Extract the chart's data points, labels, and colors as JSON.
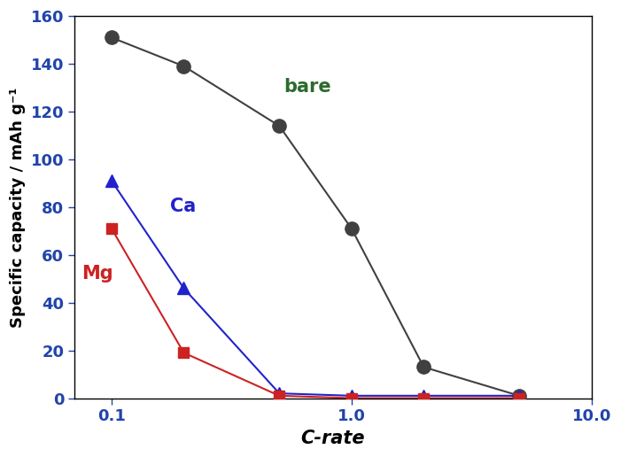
{
  "bare_x": [
    0.1,
    0.2,
    0.5,
    1.0,
    2.0,
    5.0
  ],
  "bare_y": [
    151,
    139,
    114,
    71,
    13,
    1
  ],
  "ca_x": [
    0.1,
    0.2,
    0.5,
    1.0,
    2.0,
    5.0
  ],
  "ca_y": [
    91,
    46,
    2,
    1,
    1,
    1
  ],
  "mg_x": [
    0.1,
    0.2,
    0.5,
    1.0,
    2.0,
    5.0
  ],
  "mg_y": [
    71,
    19,
    1,
    0,
    0,
    0
  ],
  "bare_color": "#404040",
  "ca_color": "#2222cc",
  "mg_color": "#cc2222",
  "tick_color": "#2244aa",
  "xlabel": "C-rate",
  "ylabel": "Specific capacity / mAh g⁻¹",
  "xlim": [
    0.07,
    10
  ],
  "ylim": [
    0,
    160
  ],
  "yticks": [
    0,
    20,
    40,
    60,
    80,
    100,
    120,
    140,
    160
  ],
  "xticks": [
    0.1,
    1,
    10
  ],
  "xtick_labels": [
    "0.1",
    "1",
    "10"
  ],
  "label_bare": "bare",
  "label_ca": "Ca",
  "label_mg": "Mg",
  "bare_label_color": "#2d6b2d",
  "axis_label_color": "#000000",
  "tick_label_color": "#2244aa",
  "bg_color": "#ffffff"
}
